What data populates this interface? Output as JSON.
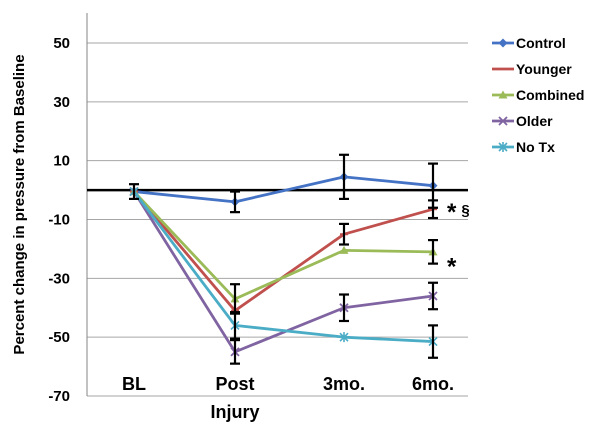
{
  "chart_data": {
    "type": "line",
    "ylabel": "Percent change in pressure from Baseline",
    "xlabel": "Injury",
    "categories": [
      "BL",
      "Post",
      "3mo.",
      "6mo."
    ],
    "ylim": [
      -70,
      60
    ],
    "yticks": [
      50,
      30,
      10,
      -10,
      -30,
      -50,
      -70
    ],
    "reference_line": 0,
    "series": [
      {
        "name": "Control",
        "color": "#4472C4",
        "marker": "diamond",
        "values": [
          -0.5,
          -4,
          4.5,
          1.5
        ],
        "error": [
          2.5,
          3.5,
          7.5,
          7.5
        ]
      },
      {
        "name": "Younger",
        "color": "#C0504D",
        "marker": "dash",
        "values": [
          -0.5,
          -41,
          -15,
          -6.5
        ],
        "error": [
          null,
          null,
          3.5,
          3
        ]
      },
      {
        "name": "Combined",
        "color": "#9BBB59",
        "marker": "triangle",
        "values": [
          -0.5,
          -37,
          -20.5,
          -21
        ],
        "error": [
          null,
          5,
          null,
          4
        ]
      },
      {
        "name": "Older",
        "color": "#8064A2",
        "marker": "x",
        "values": [
          -0.5,
          -55,
          -40,
          -36
        ],
        "error": [
          null,
          4,
          4.5,
          4.5
        ]
      },
      {
        "name": "No Tx",
        "color": "#4BACC6",
        "marker": "star",
        "values": [
          -0.5,
          -46,
          -50,
          -51.5
        ],
        "error": [
          null,
          4.5,
          null,
          5.5
        ]
      }
    ],
    "annotations": [
      {
        "text": "* §",
        "category": "6mo.",
        "y": -6.5
      },
      {
        "text": "*",
        "category": "6mo.",
        "y": -25
      }
    ],
    "legend": "right",
    "grid": true
  }
}
